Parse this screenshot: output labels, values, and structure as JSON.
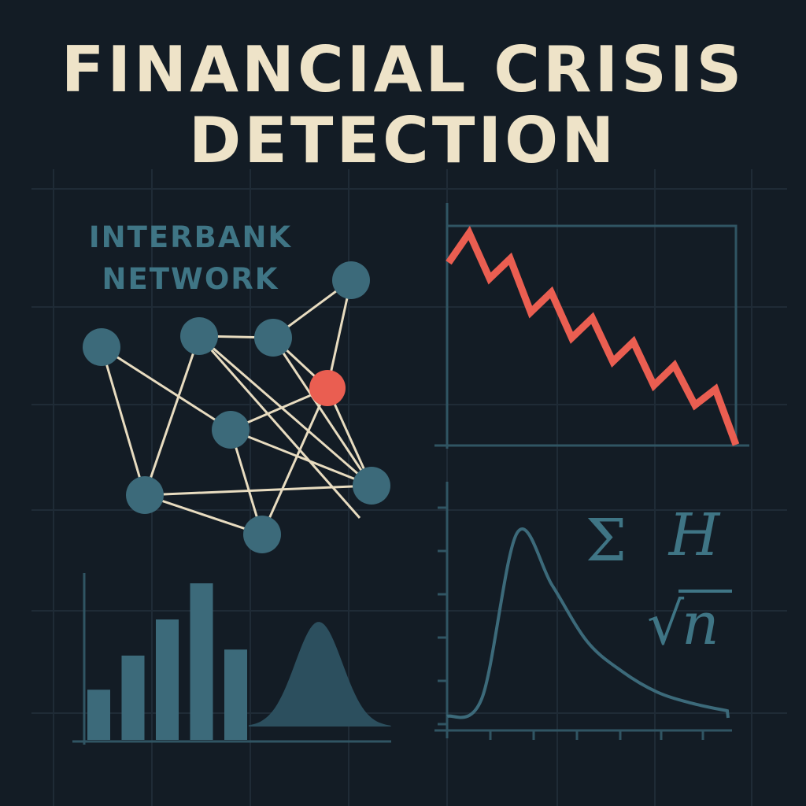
{
  "title": {
    "line1": "FINANCIAL CRISIS",
    "line2": "DETECTION"
  },
  "network": {
    "label_line1": "INTERBANK",
    "label_line2": "NETWORK",
    "nodes": [
      {
        "id": "a",
        "state": "normal"
      },
      {
        "id": "b",
        "state": "normal"
      },
      {
        "id": "c",
        "state": "normal"
      },
      {
        "id": "d",
        "state": "normal"
      },
      {
        "id": "e",
        "state": "distressed"
      },
      {
        "id": "f",
        "state": "normal"
      },
      {
        "id": "g",
        "state": "normal"
      },
      {
        "id": "h",
        "state": "normal"
      },
      {
        "id": "i",
        "state": "normal"
      }
    ],
    "edges": [
      [
        "a",
        "f"
      ],
      [
        "a",
        "g"
      ],
      [
        "b",
        "c"
      ],
      [
        "b",
        "g"
      ],
      [
        "b",
        "h"
      ],
      [
        "c",
        "d"
      ],
      [
        "c",
        "e"
      ],
      [
        "c",
        "h"
      ],
      [
        "d",
        "e"
      ],
      [
        "e",
        "f"
      ],
      [
        "e",
        "h"
      ],
      [
        "e",
        "i"
      ],
      [
        "f",
        "h"
      ],
      [
        "f",
        "i"
      ],
      [
        "g",
        "i"
      ],
      [
        "g",
        "h"
      ]
    ]
  },
  "math_symbols": {
    "sigma": "Σ",
    "h": "H",
    "sqrt": "√",
    "n": "n"
  },
  "chart_data": [
    {
      "type": "line",
      "series": [
        {
          "values": [
            80,
            95,
            72,
            82,
            55,
            65,
            42,
            52,
            30,
            40,
            18,
            28,
            8,
            16,
            -12
          ]
        }
      ]
    },
    {
      "type": "bar",
      "values": [
        25,
        42,
        60,
        78,
        45
      ],
      "overlay": {
        "type": "area",
        "shape": "bell"
      }
    },
    {
      "type": "area",
      "shape": "right-skewed density",
      "x": [
        0,
        1,
        2,
        3,
        4,
        5,
        6,
        7,
        8
      ],
      "y": [
        0.02,
        0.12,
        1.0,
        0.72,
        0.42,
        0.26,
        0.15,
        0.09,
        0.05
      ]
    }
  ],
  "colors": {
    "background": "#131c25",
    "grid": "#1f2b36",
    "title": "#eee3c8",
    "label": "#3f7585",
    "node": "#3c6a7a",
    "node_alert": "#ea5e51",
    "edge": "#e8dcc0",
    "axis": "#305563",
    "line_crash": "#ea5e51",
    "bars": "#3c6a7a",
    "bell": "#2c4f5e",
    "density": "#3c6a7a",
    "math": "#3f7585"
  }
}
